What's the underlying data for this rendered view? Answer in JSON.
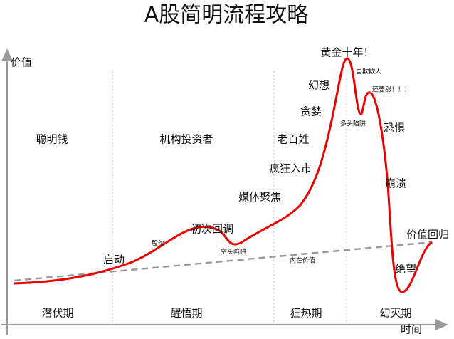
{
  "title": "A股简明流程攻略",
  "axes": {
    "y": "价值",
    "x": "时间"
  },
  "investors": [
    "聪明钱",
    "机构投资者",
    "老百姓"
  ],
  "phases": [
    "潜伏期",
    "醒悟期",
    "狂热期",
    "幻灭期"
  ],
  "curve_labels": {
    "start": "启动",
    "price": "股价",
    "first_pullback": "初次回调",
    "bear_trap": "空头陷阱",
    "media": "媒体聚焦",
    "frenzy": "疯狂入市",
    "greed": "贪婪",
    "fantasy": "幻想",
    "golden": "黄金十年！",
    "self_deception": "自欺欺人",
    "bull_trap": "多头陷阱",
    "still_rising": "还要涨！！！",
    "fear": "恐惧",
    "collapse": "崩溃",
    "despair": "绝望",
    "return": "价值回归",
    "intrinsic": "内在价值"
  }
}
